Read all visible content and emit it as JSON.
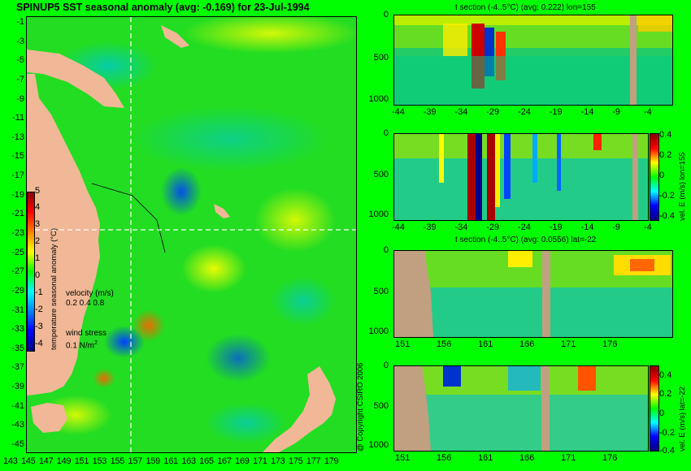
{
  "map": {
    "title": "SPINUP5 SST seasonal anomaly (avg: -0.169) for 23-Jul-1994",
    "lat_ticks": [
      "-1",
      "-3",
      "-5",
      "-7",
      "-9",
      "-11",
      "-13",
      "-15",
      "-17",
      "-19",
      "-21",
      "-23",
      "-25",
      "-27",
      "-29",
      "-31",
      "-33",
      "-35",
      "-37",
      "-39",
      "-41",
      "-43",
      "-45"
    ],
    "lon_ticks": [
      "143",
      "145",
      "147",
      "149",
      "151",
      "153",
      "155",
      "157",
      "159",
      "161",
      "163",
      "165",
      "167",
      "169",
      "171",
      "173",
      "175",
      "177",
      "179"
    ],
    "colorbar_ticks": [
      "5",
      "4",
      "3",
      "2",
      "1",
      "0",
      "-1",
      "-2",
      "-3",
      "-4"
    ],
    "colorbar_label": "temperature seasonal anomaly (°C)",
    "velocity_label": "velocity (m/s)",
    "velocity_scale": "0.2 0.4 0.8",
    "wind_label": "wind stress",
    "wind_scale": "0.1 N/m",
    "wind_scale_sup": "2",
    "section_lon": 155,
    "section_lat": -22
  },
  "panels": {
    "p1_title": "t section (-4..5°C) (avg: 0.222) lon=155",
    "p2_title": "",
    "p3_title": "t section (-4..5°C) (avg: 0.0556) lat=-22",
    "depth_ticks": [
      "0",
      "500",
      "1000"
    ],
    "lat_section_ticks": [
      "-44",
      "-39",
      "-34",
      "-29",
      "-24",
      "-19",
      "-14",
      "-9",
      "-4"
    ],
    "lon_section_ticks": [
      "151",
      "156",
      "161",
      "166",
      "171",
      "176"
    ],
    "vel_ticks": [
      "0.4",
      "0.2",
      "0",
      "-0.2",
      "-0.4"
    ],
    "vel_label_lon": "vel. E (m/s) lon=155",
    "vel_label_lat": "vel. E (m/s) lat=-22"
  },
  "copyright": "@ Copyright CSIRO 2006"
}
